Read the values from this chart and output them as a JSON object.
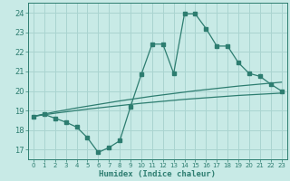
{
  "xlabel": "Humidex (Indice chaleur)",
  "bg_color": "#c8eae6",
  "grid_color": "#aad4d0",
  "line_color": "#2d7d70",
  "xlim": [
    -0.5,
    23.5
  ],
  "ylim": [
    16.5,
    24.5
  ],
  "yticks": [
    17,
    18,
    19,
    20,
    21,
    22,
    23,
    24
  ],
  "xticks": [
    0,
    1,
    2,
    3,
    4,
    5,
    6,
    7,
    8,
    9,
    10,
    11,
    12,
    13,
    14,
    15,
    16,
    17,
    18,
    19,
    20,
    21,
    22,
    23
  ],
  "line1_x": [
    0,
    1,
    2,
    3,
    4,
    5,
    6,
    7,
    8,
    9,
    10,
    11,
    12,
    13,
    14,
    15,
    16,
    17,
    18,
    19,
    20,
    21,
    22,
    23
  ],
  "line1_y": [
    18.7,
    18.8,
    18.6,
    18.4,
    18.15,
    17.6,
    16.85,
    17.1,
    17.45,
    19.2,
    20.85,
    22.4,
    22.4,
    20.9,
    23.95,
    23.95,
    23.2,
    22.3,
    22.3,
    21.45,
    20.9,
    20.75,
    20.35,
    20.0
  ],
  "line2_x": [
    0,
    1,
    2,
    3,
    4,
    5,
    6,
    7,
    8,
    9,
    10,
    11,
    12,
    13,
    14,
    15,
    16,
    17,
    18,
    19,
    20,
    21,
    22,
    23
  ],
  "line2_y": [
    18.7,
    18.82,
    18.93,
    19.03,
    19.13,
    19.22,
    19.31,
    19.4,
    19.49,
    19.57,
    19.65,
    19.73,
    19.8,
    19.87,
    19.94,
    20.01,
    20.07,
    20.13,
    20.19,
    20.25,
    20.3,
    20.35,
    20.4,
    20.45
  ],
  "line3_x": [
    0,
    1,
    2,
    3,
    4,
    5,
    6,
    7,
    8,
    9,
    10,
    11,
    12,
    13,
    14,
    15,
    16,
    17,
    18,
    19,
    20,
    21,
    22,
    23
  ],
  "line3_y": [
    18.7,
    18.78,
    18.86,
    18.93,
    19.0,
    19.07,
    19.13,
    19.19,
    19.25,
    19.31,
    19.37,
    19.42,
    19.47,
    19.52,
    19.57,
    19.61,
    19.65,
    19.69,
    19.73,
    19.77,
    19.8,
    19.83,
    19.86,
    19.89
  ],
  "marker_x": [
    0,
    1,
    2,
    3,
    4,
    5,
    6,
    7,
    8,
    9,
    10,
    11,
    12,
    13,
    14,
    15,
    16,
    17,
    18,
    19,
    20,
    21,
    22,
    23
  ],
  "marker_y": [
    18.7,
    18.8,
    18.6,
    18.4,
    18.15,
    17.6,
    16.85,
    17.1,
    17.45,
    19.2,
    20.85,
    22.4,
    22.4,
    20.9,
    23.95,
    23.95,
    23.2,
    22.3,
    22.3,
    21.45,
    20.9,
    20.75,
    20.35,
    20.0
  ]
}
